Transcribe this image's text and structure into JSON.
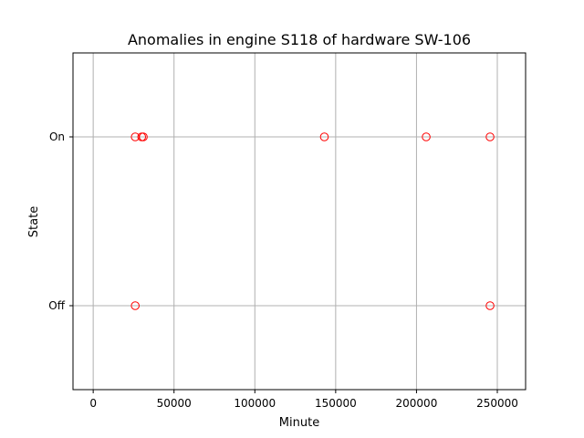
{
  "chart_data": {
    "type": "scatter",
    "title": "Anomalies in engine S118 of hardware SW-106",
    "xlabel": "Minute",
    "ylabel": "State",
    "xlim": [
      -12500,
      267500
    ],
    "x_ticks": [
      0,
      50000,
      100000,
      150000,
      200000,
      250000
    ],
    "x_tick_labels": [
      "0",
      "50000",
      "100000",
      "150000",
      "200000",
      "250000"
    ],
    "y_categories": [
      "Off",
      "On"
    ],
    "grid": true,
    "series": [
      {
        "marker": "hollow-circle",
        "color": "#ff0000",
        "points": [
          {
            "x": 26000,
            "y": "On"
          },
          {
            "x": 30000,
            "y": "On"
          },
          {
            "x": 31000,
            "y": "On"
          },
          {
            "x": 143000,
            "y": "On"
          },
          {
            "x": 206000,
            "y": "On"
          },
          {
            "x": 245500,
            "y": "On"
          },
          {
            "x": 26000,
            "y": "Off"
          },
          {
            "x": 245500,
            "y": "Off"
          }
        ]
      }
    ]
  }
}
